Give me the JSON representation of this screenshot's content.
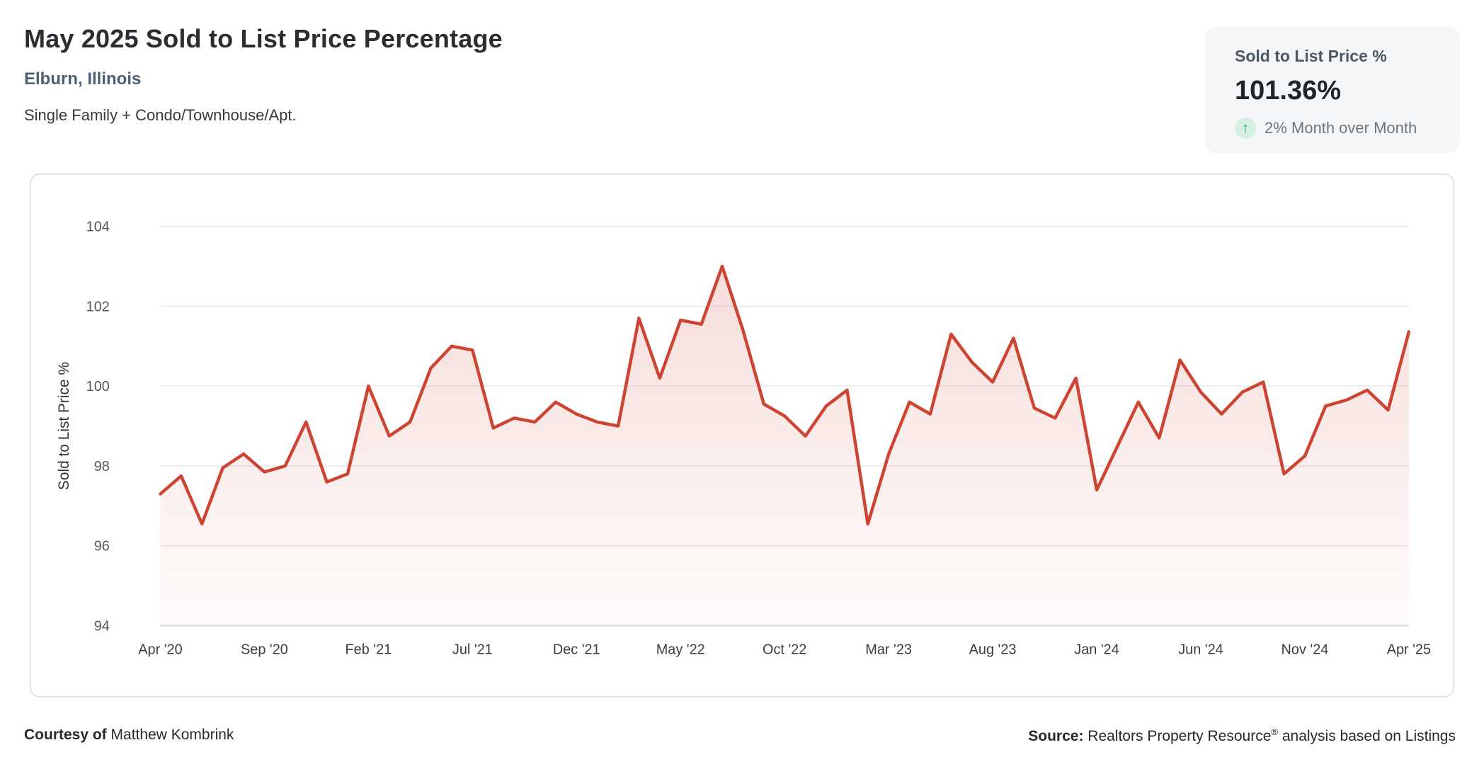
{
  "header": {
    "title": "May 2025 Sold to List Price Percentage",
    "location": "Elburn, Illinois",
    "property_types": "Single Family + Condo/Townhouse/Apt."
  },
  "stat_card": {
    "label": "Sold to List Price %",
    "value": "101.36%",
    "trend_icon": "up-arrow",
    "trend_arrow": "↑",
    "trend_text": "2% Month over Month",
    "trend_green": "#1a9e63",
    "card_bg": "#f5f6f8"
  },
  "chart_data": {
    "type": "area",
    "title": "May 2025 Sold to List Price Percentage",
    "ylabel": "Sold to List Price %",
    "xlabel": "",
    "x_start": "Apr 2020",
    "x_end": "Apr 2025",
    "x_frequency": "monthly",
    "x_tick_interval_months": 5,
    "x_tick_labels": [
      "Apr '20",
      "Sep '20",
      "Feb '21",
      "Jul '21",
      "Dec '21",
      "May '22",
      "Oct '22",
      "Mar '23",
      "Aug '23",
      "Jan '24",
      "Jun '24",
      "Nov '24",
      "Apr '25"
    ],
    "yticks": [
      94,
      96,
      98,
      100,
      102,
      104
    ],
    "ylim": [
      94,
      104
    ],
    "grid": true,
    "legend": false,
    "line_color": "#cd4433",
    "fill_top_opacity": 0.2,
    "fill_bottom_opacity": 0.02,
    "values": [
      97.3,
      97.75,
      96.55,
      97.95,
      98.3,
      97.85,
      98.0,
      99.1,
      97.6,
      97.8,
      100.0,
      98.75,
      99.1,
      100.45,
      101.0,
      100.9,
      98.95,
      99.2,
      99.1,
      99.6,
      99.3,
      99.1,
      99.0,
      101.7,
      100.2,
      101.65,
      101.55,
      103.0,
      101.4,
      99.55,
      99.25,
      98.75,
      99.5,
      99.9,
      96.55,
      98.3,
      99.6,
      99.3,
      101.3,
      100.6,
      100.1,
      101.2,
      99.45,
      99.2,
      100.2,
      97.4,
      98.5,
      99.6,
      98.7,
      100.65,
      99.85,
      99.3,
      99.85,
      100.1,
      97.8,
      98.25,
      99.5,
      99.65,
      99.9,
      99.4,
      101.36
    ]
  },
  "footer": {
    "courtesy_bold": "Courtesy of",
    "courtesy_name": " Matthew Kombrink",
    "source_bold": "Source:",
    "source_text": " Realtors Property Resource",
    "source_reg": "®",
    "source_suffix": " analysis based on Listings"
  }
}
